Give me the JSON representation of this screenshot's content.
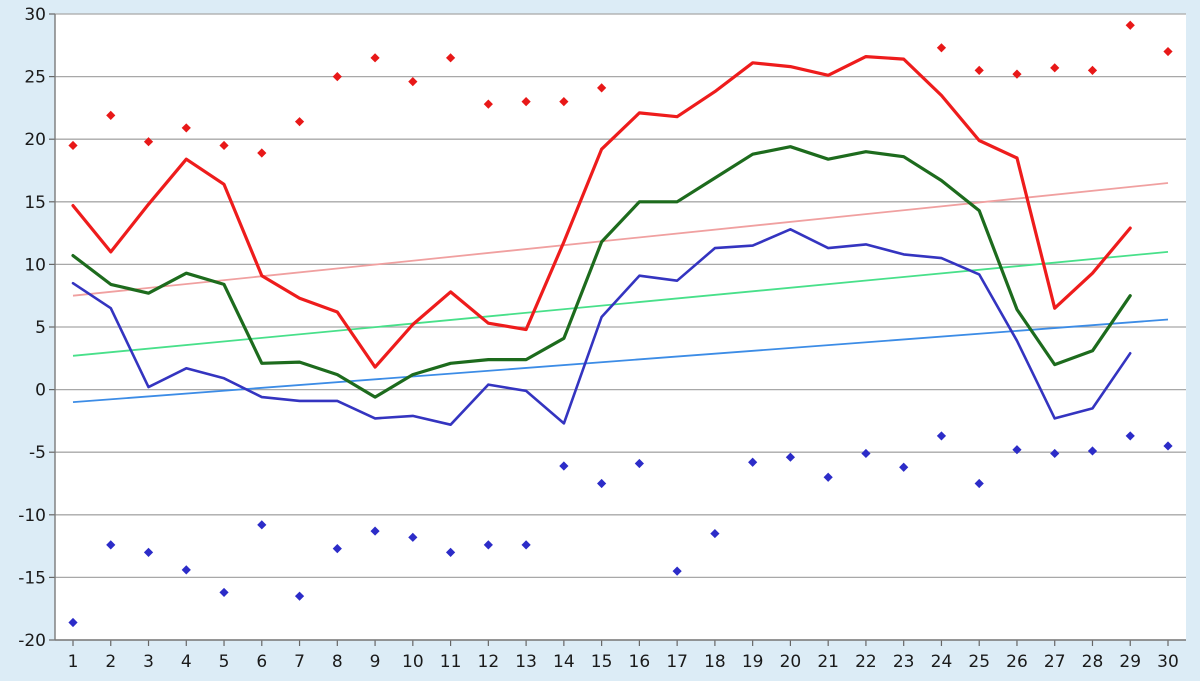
{
  "chart_data": {
    "type": "line",
    "title": "",
    "xlabel": "",
    "ylabel": "",
    "x": [
      1,
      2,
      3,
      4,
      5,
      6,
      7,
      8,
      9,
      10,
      11,
      12,
      13,
      14,
      15,
      16,
      17,
      18,
      19,
      20,
      21,
      22,
      23,
      24,
      25,
      26,
      27,
      28,
      29,
      30
    ],
    "ylim": [
      -20,
      30
    ],
    "yticks": [
      30,
      25,
      20,
      15,
      10,
      5,
      0,
      -5,
      -10,
      -15,
      -20
    ],
    "grid": true,
    "legend": "none",
    "colors": {
      "background": "#ffffff",
      "outer_background": "#dcecf6",
      "grid": "#a8a8a8",
      "max_line": "#ee1c1c",
      "mean_line": "#1d6b1d",
      "min_line": "#3434c0",
      "max_trend": "#f0a0a0",
      "mean_trend": "#48e08a",
      "min_trend": "#3c8ce6",
      "max_points": "#e81818",
      "min_points": "#2c2cc8"
    },
    "series": [
      {
        "kind": "line",
        "values": [
          14.7,
          11.0,
          14.8,
          18.4,
          16.4,
          9.1,
          7.3,
          6.2,
          1.8,
          5.2,
          7.8,
          5.3,
          4.8,
          11.8,
          19.2,
          22.1,
          21.8,
          23.8,
          26.1,
          25.8,
          25.1,
          26.6,
          26.4,
          23.5,
          19.9,
          18.5,
          6.5,
          9.3,
          12.9,
          null
        ]
      },
      {
        "kind": "line",
        "values": [
          10.7,
          8.4,
          7.7,
          9.3,
          8.4,
          2.1,
          2.2,
          1.2,
          -0.6,
          1.2,
          2.1,
          2.4,
          2.4,
          4.1,
          11.8,
          15.0,
          15.0,
          16.9,
          18.8,
          19.4,
          18.4,
          19.0,
          18.6,
          16.7,
          14.3,
          6.4,
          2.0,
          3.1,
          7.5,
          null
        ]
      },
      {
        "kind": "line",
        "values": [
          8.5,
          6.5,
          0.2,
          1.7,
          0.9,
          -0.6,
          -0.9,
          -0.9,
          -2.3,
          -2.1,
          -2.8,
          0.4,
          -0.1,
          -2.7,
          5.8,
          9.1,
          8.7,
          11.3,
          11.5,
          12.8,
          11.3,
          11.6,
          10.8,
          10.5,
          9.2,
          3.9,
          -2.3,
          -1.5,
          2.9,
          null
        ]
      },
      {
        "kind": "trend",
        "from": [
          1,
          7.5
        ],
        "to": [
          30,
          16.5
        ]
      },
      {
        "kind": "trend",
        "from": [
          1,
          2.7
        ],
        "to": [
          30,
          11.0
        ]
      },
      {
        "kind": "trend",
        "from": [
          1,
          -1.0
        ],
        "to": [
          30,
          5.6
        ]
      },
      {
        "kind": "points",
        "values": [
          19.5,
          21.9,
          19.8,
          20.9,
          19.5,
          18.9,
          21.4,
          25.0,
          26.5,
          24.6,
          26.5,
          22.8,
          23.0,
          23.0,
          24.1,
          null,
          null,
          null,
          null,
          null,
          null,
          null,
          null,
          27.3,
          25.5,
          25.2,
          25.7,
          25.5,
          29.1,
          27.0
        ]
      },
      {
        "kind": "points",
        "values": [
          -18.6,
          -12.4,
          -13.0,
          -14.4,
          -16.2,
          -10.8,
          -16.5,
          -12.7,
          -11.3,
          -11.8,
          -13.0,
          -12.4,
          -12.4,
          -6.1,
          -7.5,
          -5.9,
          -14.5,
          -11.5,
          -5.8,
          -5.4,
          -7.0,
          -5.1,
          -6.2,
          -3.7,
          -7.5,
          -4.8,
          -5.1,
          -4.9,
          -3.7,
          -4.5
        ]
      }
    ]
  }
}
